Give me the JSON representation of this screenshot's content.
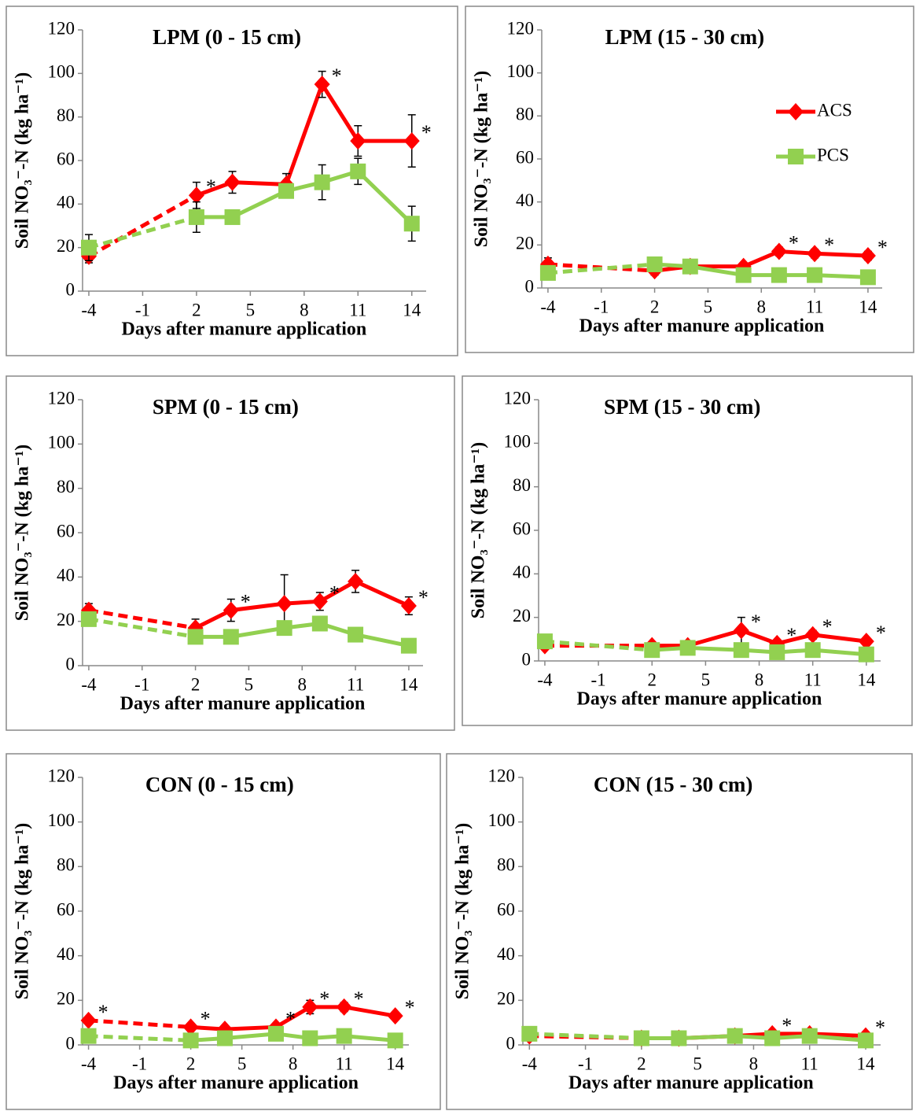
{
  "chart_data": [
    {
      "type": "line",
      "title": "LPM (0 - 15 cm)",
      "x_label": "Days after manure application",
      "y_label": "Soil NO₃⁻-N (kg ha⁻¹)",
      "x": [
        -4,
        2,
        4,
        7,
        9,
        11,
        14
      ],
      "xlim": [
        -4.35,
        14.8
      ],
      "xticks": [
        -4,
        -1,
        2,
        5,
        8,
        11,
        14
      ],
      "ylim": [
        0,
        120
      ],
      "yticks": [
        0,
        20,
        40,
        60,
        80,
        100,
        120
      ],
      "dash_first_segment": true,
      "series": [
        {
          "name": "ACS",
          "color": "#ff0000",
          "marker": "diamond",
          "values": [
            16,
            44,
            50,
            49,
            95,
            69,
            69
          ],
          "errors": [
            3,
            6,
            5,
            5,
            6,
            7,
            12
          ],
          "significance": [
            null,
            "*",
            null,
            null,
            "*",
            null,
            "*"
          ]
        },
        {
          "name": "PCS",
          "color": "#92d050",
          "marker": "square",
          "values": [
            20,
            34,
            34,
            46,
            50,
            55,
            31
          ],
          "errors": [
            6,
            7,
            2,
            2,
            8,
            6,
            8
          ]
        }
      ]
    },
    {
      "type": "line",
      "title": "LPM (15 - 30 cm)",
      "x_label": "Days after manure application",
      "y_label": "Soil NO₃⁻-N (kg ha⁻¹)",
      "x": [
        -4,
        2,
        4,
        7,
        9,
        11,
        14
      ],
      "xlim": [
        -4.35,
        14.8
      ],
      "xticks": [
        -4,
        -1,
        2,
        5,
        8,
        11,
        14
      ],
      "ylim": [
        0,
        120
      ],
      "yticks": [
        0,
        20,
        40,
        60,
        80,
        100,
        120
      ],
      "dash_first_segment": true,
      "legend": "right",
      "series": [
        {
          "name": "ACS",
          "color": "#ff0000",
          "marker": "diamond",
          "values": [
            11,
            8,
            10,
            10,
            17,
            16,
            15
          ],
          "errors": [
            3,
            2,
            1,
            1,
            2,
            2,
            2
          ],
          "significance": [
            null,
            null,
            null,
            null,
            "*",
            "*",
            "*"
          ]
        },
        {
          "name": "PCS",
          "color": "#92d050",
          "marker": "square",
          "values": [
            7,
            11,
            10,
            6,
            6,
            6,
            5
          ],
          "errors": [
            1,
            1,
            1,
            1,
            1,
            1,
            1
          ]
        }
      ]
    },
    {
      "type": "line",
      "title": "SPM (0 - 15 cm)",
      "x_label": "Days after manure application",
      "y_label": "Soil NO₃⁻-N (kg ha⁻¹)",
      "x": [
        -4,
        2,
        4,
        7,
        9,
        11,
        14
      ],
      "xlim": [
        -4.35,
        14.8
      ],
      "xticks": [
        -4,
        -1,
        2,
        5,
        8,
        11,
        14
      ],
      "ylim": [
        0,
        120
      ],
      "yticks": [
        0,
        20,
        40,
        60,
        80,
        100,
        120
      ],
      "dash_first_segment": true,
      "series": [
        {
          "name": "ACS",
          "color": "#ff0000",
          "marker": "diamond",
          "values": [
            25,
            17,
            25,
            28,
            29,
            38,
            27
          ],
          "errors": [
            3,
            4,
            5,
            13,
            4,
            5,
            4
          ],
          "significance": [
            null,
            null,
            "*",
            null,
            "*",
            null,
            "*"
          ]
        },
        {
          "name": "PCS",
          "color": "#92d050",
          "marker": "square",
          "values": [
            21,
            13,
            13,
            17,
            19,
            14,
            9
          ],
          "errors": [
            2,
            2,
            2,
            2,
            2,
            2,
            1
          ]
        }
      ]
    },
    {
      "type": "line",
      "title": "SPM (15 - 30 cm)",
      "x_label": "Days after manure application",
      "y_label": "Soil NO₃⁻-N (kg ha⁻¹)",
      "x": [
        -4,
        2,
        4,
        7,
        9,
        11,
        14
      ],
      "xlim": [
        -4.35,
        14.8
      ],
      "xticks": [
        -4,
        -1,
        2,
        5,
        8,
        11,
        14
      ],
      "ylim": [
        0,
        120
      ],
      "yticks": [
        0,
        20,
        40,
        60,
        80,
        100,
        120
      ],
      "dash_first_segment": true,
      "series": [
        {
          "name": "ACS",
          "color": "#ff0000",
          "marker": "diamond",
          "values": [
            7,
            7,
            7,
            14,
            8,
            12,
            9
          ],
          "errors": [
            1,
            1,
            1,
            6,
            1,
            2,
            1
          ],
          "significance": [
            null,
            null,
            null,
            "*",
            "*",
            "*",
            "*"
          ]
        },
        {
          "name": "PCS",
          "color": "#92d050",
          "marker": "square",
          "values": [
            9,
            5,
            6,
            5,
            4,
            5,
            3
          ],
          "errors": [
            1,
            1,
            1,
            1,
            1,
            1,
            1
          ]
        }
      ]
    },
    {
      "type": "line",
      "title": "CON (0 - 15 cm)",
      "x_label": "Days after manure application",
      "y_label": "Soil NO₃⁻-N (kg ha⁻¹)",
      "x": [
        -4,
        2,
        4,
        7,
        9,
        11,
        14
      ],
      "xlim": [
        -4.35,
        14.8
      ],
      "xticks": [
        -4,
        -1,
        2,
        5,
        8,
        11,
        14
      ],
      "ylim": [
        0,
        120
      ],
      "yticks": [
        0,
        20,
        40,
        60,
        80,
        100,
        120
      ],
      "dash_first_segment": true,
      "series": [
        {
          "name": "ACS",
          "color": "#ff0000",
          "marker": "diamond",
          "values": [
            11,
            8,
            7,
            8,
            17,
            17,
            13
          ],
          "errors": [
            1,
            1,
            1,
            1,
            3,
            2,
            1
          ],
          "significance": [
            "*",
            "*",
            null,
            "*",
            "*",
            "*",
            "*"
          ]
        },
        {
          "name": "PCS",
          "color": "#92d050",
          "marker": "square",
          "values": [
            4,
            2,
            3,
            5,
            3,
            4,
            2
          ],
          "errors": [
            1,
            1,
            1,
            1,
            1,
            1,
            1
          ]
        }
      ]
    },
    {
      "type": "line",
      "title": "CON (15 - 30 cm)",
      "x_label": "Days after manure application",
      "y_label": "Soil NO₃⁻-N (kg ha⁻¹)",
      "x": [
        -4,
        2,
        4,
        7,
        9,
        11,
        14
      ],
      "xlim": [
        -4.35,
        14.8
      ],
      "xticks": [
        -4,
        -1,
        2,
        5,
        8,
        11,
        14
      ],
      "ylim": [
        0,
        120
      ],
      "yticks": [
        0,
        20,
        40,
        60,
        80,
        100,
        120
      ],
      "dash_first_segment": true,
      "series": [
        {
          "name": "ACS",
          "color": "#ff0000",
          "marker": "diamond",
          "values": [
            4,
            3,
            3,
            4,
            5,
            5,
            4
          ],
          "errors": [
            1,
            1,
            1,
            1,
            1,
            1,
            1
          ],
          "significance": [
            null,
            null,
            null,
            null,
            "*",
            null,
            "*"
          ]
        },
        {
          "name": "PCS",
          "color": "#92d050",
          "marker": "square",
          "values": [
            5,
            3,
            3,
            4,
            3,
            4,
            2
          ],
          "errors": [
            1,
            1,
            1,
            1,
            1,
            1,
            1
          ]
        }
      ]
    }
  ]
}
